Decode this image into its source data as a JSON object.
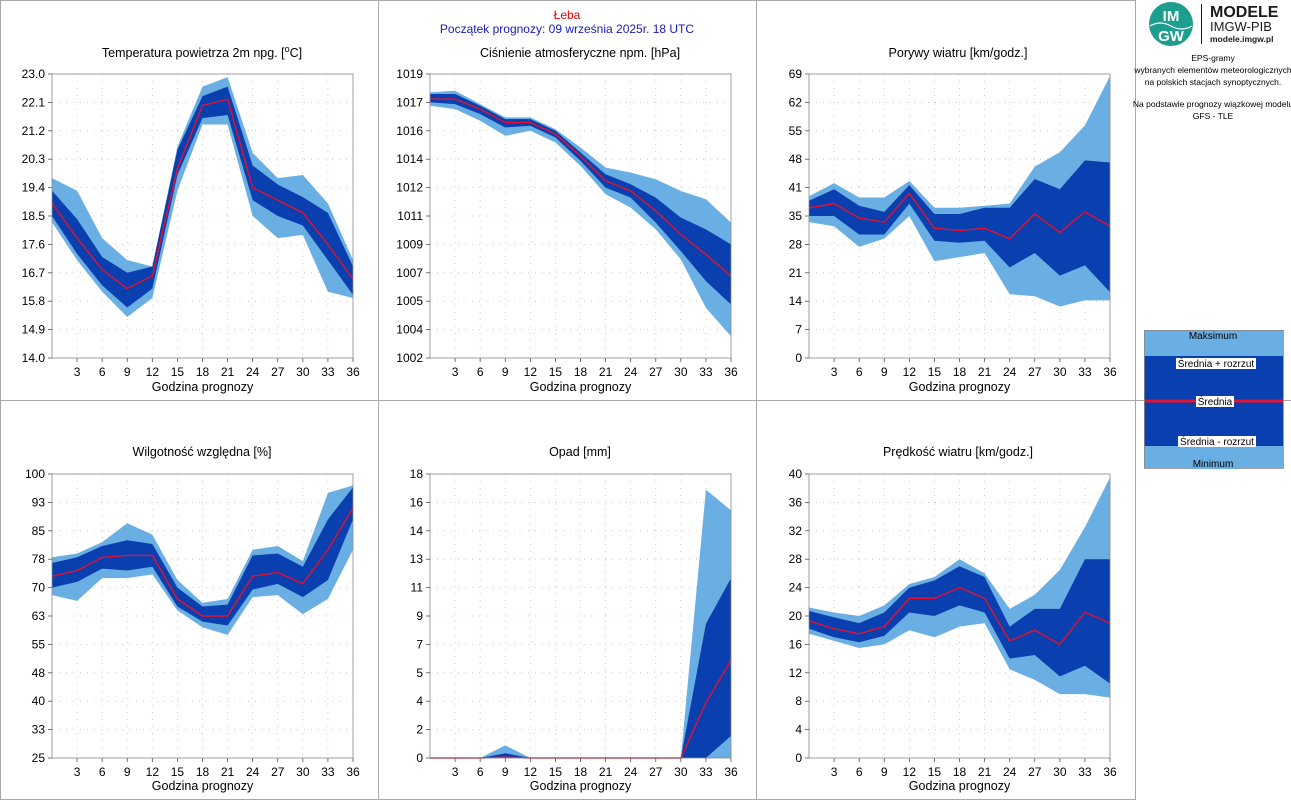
{
  "header": {
    "station": "Łeba",
    "start": "Początek prognozy: 09 września 2025r. 18 UTC"
  },
  "logo": {
    "line1": "MODELE",
    "line2": "IMGW-PIB",
    "line3": "modele.imgw.pl",
    "badge_top": "IM",
    "badge_bottom": "GW"
  },
  "side_note": {
    "lines": [
      "EPS-gramy",
      "wybranych elementów meteorologicznych",
      "na polskich stacjach  synoptycznych.",
      "",
      "Na podstawie prognozy wiązkowej modelu",
      "GFS - TLE"
    ]
  },
  "legend": {
    "max": "Maksimum",
    "upper": "Średnia + rozrzut",
    "mean": "Średnia",
    "lower": "Średnia - rozrzut",
    "min": "Minimum"
  },
  "colors": {
    "light": "#6aafe3",
    "dark": "#0a3fb0",
    "mean": "#e8102a",
    "grid": "#bdbdbd",
    "frame": "#a9a9a9"
  },
  "chart_data": [
    {
      "id": "temp",
      "type": "area",
      "title": "Temperatura powietrza 2m npg. [°C]",
      "xlabel": "Godzina prognozy",
      "x": [
        0,
        3,
        6,
        9,
        12,
        15,
        18,
        21,
        24,
        27,
        30,
        33,
        36
      ],
      "yticks": [
        "14.0",
        "14.9",
        "15.8",
        "16.7",
        "17.6",
        "18.5",
        "19.4",
        "20.3",
        "21.2",
        "22.1",
        "23.0"
      ],
      "ylim": [
        14.0,
        23.0
      ],
      "max": [
        19.7,
        19.3,
        17.8,
        17.1,
        16.9,
        20.7,
        22.6,
        22.9,
        20.5,
        19.7,
        19.8,
        18.9,
        17.1
      ],
      "upper": [
        19.3,
        18.4,
        17.2,
        16.7,
        16.9,
        20.6,
        22.3,
        22.6,
        20.1,
        19.5,
        19.1,
        18.6,
        16.9
      ],
      "mean": [
        18.9,
        17.8,
        16.8,
        16.2,
        16.6,
        20.0,
        22.0,
        22.2,
        19.4,
        19.0,
        18.6,
        17.6,
        16.5
      ],
      "lower": [
        18.5,
        17.3,
        16.3,
        15.6,
        16.2,
        19.8,
        21.6,
        21.7,
        19.0,
        18.5,
        18.2,
        17.1,
        16.0
      ],
      "min": [
        18.3,
        17.1,
        16.1,
        15.3,
        15.9,
        19.3,
        21.4,
        21.4,
        18.5,
        17.8,
        17.9,
        16.1,
        15.9
      ]
    },
    {
      "id": "pressure",
      "type": "area",
      "title": "Ciśnienie atmosferyczne npm. [hPa]",
      "xlabel": "Godzina prognozy",
      "x": [
        0,
        3,
        6,
        9,
        12,
        15,
        18,
        21,
        24,
        27,
        30,
        33,
        36
      ],
      "yticks": [
        "1002",
        "1004",
        "1005",
        "1007",
        "1009",
        "1011",
        "1012",
        "1014",
        "1016",
        "1017",
        "1019"
      ],
      "ylim": [
        1002,
        1019
      ],
      "max": [
        1017.9,
        1018.0,
        1017.2,
        1016.4,
        1016.4,
        1015.7,
        1014.6,
        1013.4,
        1013.1,
        1012.7,
        1012.0,
        1011.5,
        1010.1
      ],
      "upper": [
        1017.8,
        1017.8,
        1017.1,
        1016.3,
        1016.3,
        1015.6,
        1014.3,
        1013.0,
        1012.4,
        1011.6,
        1010.4,
        1009.7,
        1008.8
      ],
      "mean": [
        1017.5,
        1017.5,
        1016.9,
        1016.1,
        1016.1,
        1015.4,
        1014.1,
        1012.6,
        1012.0,
        1010.8,
        1009.4,
        1008.2,
        1006.9
      ],
      "lower": [
        1017.3,
        1017.2,
        1016.6,
        1015.8,
        1015.9,
        1015.2,
        1013.8,
        1012.2,
        1011.6,
        1010.1,
        1008.4,
        1006.6,
        1005.2
      ],
      "min": [
        1017.1,
        1016.9,
        1016.2,
        1015.3,
        1015.6,
        1014.9,
        1013.5,
        1011.8,
        1011.0,
        1009.7,
        1007.9,
        1005.0,
        1003.3
      ]
    },
    {
      "id": "gusts",
      "type": "area",
      "title": "Porywy wiatru [km/godz.]",
      "xlabel": "Godzina prognozy",
      "x": [
        0,
        3,
        6,
        9,
        12,
        15,
        18,
        21,
        24,
        27,
        30,
        33,
        36
      ],
      "yticks": [
        "0",
        "7",
        "14",
        "21",
        "28",
        "35",
        "41",
        "48",
        "55",
        "62",
        "69"
      ],
      "ylim": [
        0,
        69
      ],
      "max": [
        39.3,
        42.5,
        39.0,
        39.0,
        43.0,
        36.5,
        36.5,
        37.0,
        37.5,
        46.5,
        50.0,
        56.5,
        68.5
      ],
      "upper": [
        38.2,
        41.0,
        37.0,
        35.5,
        42.0,
        35.0,
        35.0,
        36.5,
        36.5,
        43.5,
        41.0,
        48.0,
        47.5
      ],
      "mean": [
        36.5,
        37.5,
        34.0,
        33.0,
        40.0,
        31.5,
        31.0,
        31.5,
        29.0,
        35.0,
        30.5,
        35.5,
        32.0
      ],
      "lower": [
        34.5,
        34.5,
        30.0,
        30.0,
        37.5,
        28.5,
        28.0,
        28.5,
        22.0,
        25.5,
        20.0,
        22.5,
        16.0
      ],
      "min": [
        33.0,
        32.0,
        27.0,
        29.0,
        34.5,
        23.5,
        24.5,
        25.5,
        15.5,
        15.0,
        12.5,
        14.0,
        14.0
      ]
    },
    {
      "id": "humidity",
      "type": "area",
      "title": "Wilgotność względna [%]",
      "xlabel": "Godzina prognozy",
      "x": [
        0,
        3,
        6,
        9,
        12,
        15,
        18,
        21,
        24,
        27,
        30,
        33,
        36
      ],
      "yticks": [
        "25",
        "33",
        "40",
        "48",
        "55",
        "63",
        "70",
        "78",
        "85",
        "93",
        "100"
      ],
      "ylim": [
        25,
        100
      ],
      "max": [
        78.0,
        79.0,
        82.0,
        87.0,
        84.0,
        72.0,
        66.0,
        67.0,
        80.0,
        81.0,
        77.0,
        95.0,
        97.0
      ],
      "upper": [
        76.5,
        78.0,
        81.0,
        82.5,
        81.5,
        70.0,
        65.0,
        65.5,
        78.5,
        79.0,
        75.5,
        88.0,
        96.5
      ],
      "mean": [
        73.0,
        74.5,
        78.0,
        78.5,
        78.5,
        67.0,
        62.5,
        62.5,
        73.0,
        74.0,
        71.0,
        80.0,
        91.0
      ],
      "lower": [
        70.0,
        71.5,
        75.0,
        74.5,
        75.5,
        65.0,
        61.0,
        60.0,
        69.5,
        71.0,
        67.5,
        72.0,
        88.0
      ],
      "min": [
        68.0,
        66.5,
        72.5,
        72.5,
        73.5,
        64.0,
        59.5,
        57.5,
        67.5,
        68.0,
        63.0,
        67.0,
        80.0
      ]
    },
    {
      "id": "precip",
      "type": "area",
      "title": "Opad [mm]",
      "xlabel": "Godzina prognozy",
      "x": [
        0,
        3,
        6,
        9,
        12,
        15,
        18,
        21,
        24,
        27,
        30,
        33,
        36
      ],
      "yticks": [
        "0",
        "2",
        "4",
        "5",
        "7",
        "9",
        "11",
        "13",
        "14",
        "16",
        "18"
      ],
      "ylim": [
        0,
        18
      ],
      "max": [
        0,
        0,
        0,
        0.8,
        0,
        0,
        0,
        0,
        0,
        0,
        0,
        17.0,
        15.7
      ],
      "upper": [
        0,
        0,
        0,
        0.3,
        0,
        0,
        0,
        0,
        0,
        0,
        0,
        8.5,
        11.4
      ],
      "mean": [
        0,
        0,
        0,
        0.05,
        0,
        0,
        0,
        0,
        0,
        0,
        0,
        3.5,
        6.2
      ],
      "lower": [
        0,
        0,
        0,
        0,
        0,
        0,
        0,
        0,
        0,
        0,
        0,
        0,
        1.4
      ],
      "min": [
        0,
        0,
        0,
        0,
        0,
        0,
        0,
        0,
        0,
        0,
        0,
        0,
        0
      ]
    },
    {
      "id": "wind",
      "type": "area",
      "title": "Prędkość wiatru [km/godz.]",
      "xlabel": "Godzina prognozy",
      "x": [
        0,
        3,
        6,
        9,
        12,
        15,
        18,
        21,
        24,
        27,
        30,
        33,
        36
      ],
      "yticks": [
        "0",
        "4",
        "8",
        "12",
        "16",
        "20",
        "24",
        "28",
        "32",
        "36",
        "40"
      ],
      "ylim": [
        0,
        40
      ],
      "max": [
        21.2,
        20.5,
        20.0,
        21.5,
        24.5,
        25.5,
        28.0,
        26.0,
        21.0,
        23.0,
        26.5,
        32.5,
        39.5
      ],
      "upper": [
        20.7,
        19.8,
        19.0,
        20.5,
        24.0,
        25.0,
        27.0,
        25.5,
        18.5,
        21.0,
        21.0,
        28.0,
        28.0
      ],
      "mean": [
        19.3,
        18.2,
        17.5,
        18.5,
        22.5,
        22.5,
        24.0,
        22.5,
        16.5,
        18.0,
        16.0,
        20.5,
        19.0
      ],
      "lower": [
        18.2,
        17.0,
        16.3,
        17.2,
        20.5,
        20.0,
        21.5,
        20.5,
        14.0,
        14.5,
        11.5,
        13.0,
        10.5
      ],
      "min": [
        17.5,
        16.5,
        15.5,
        16.0,
        18.0,
        17.0,
        18.5,
        19.0,
        12.5,
        11.0,
        9.0,
        9.0,
        8.5
      ]
    }
  ]
}
